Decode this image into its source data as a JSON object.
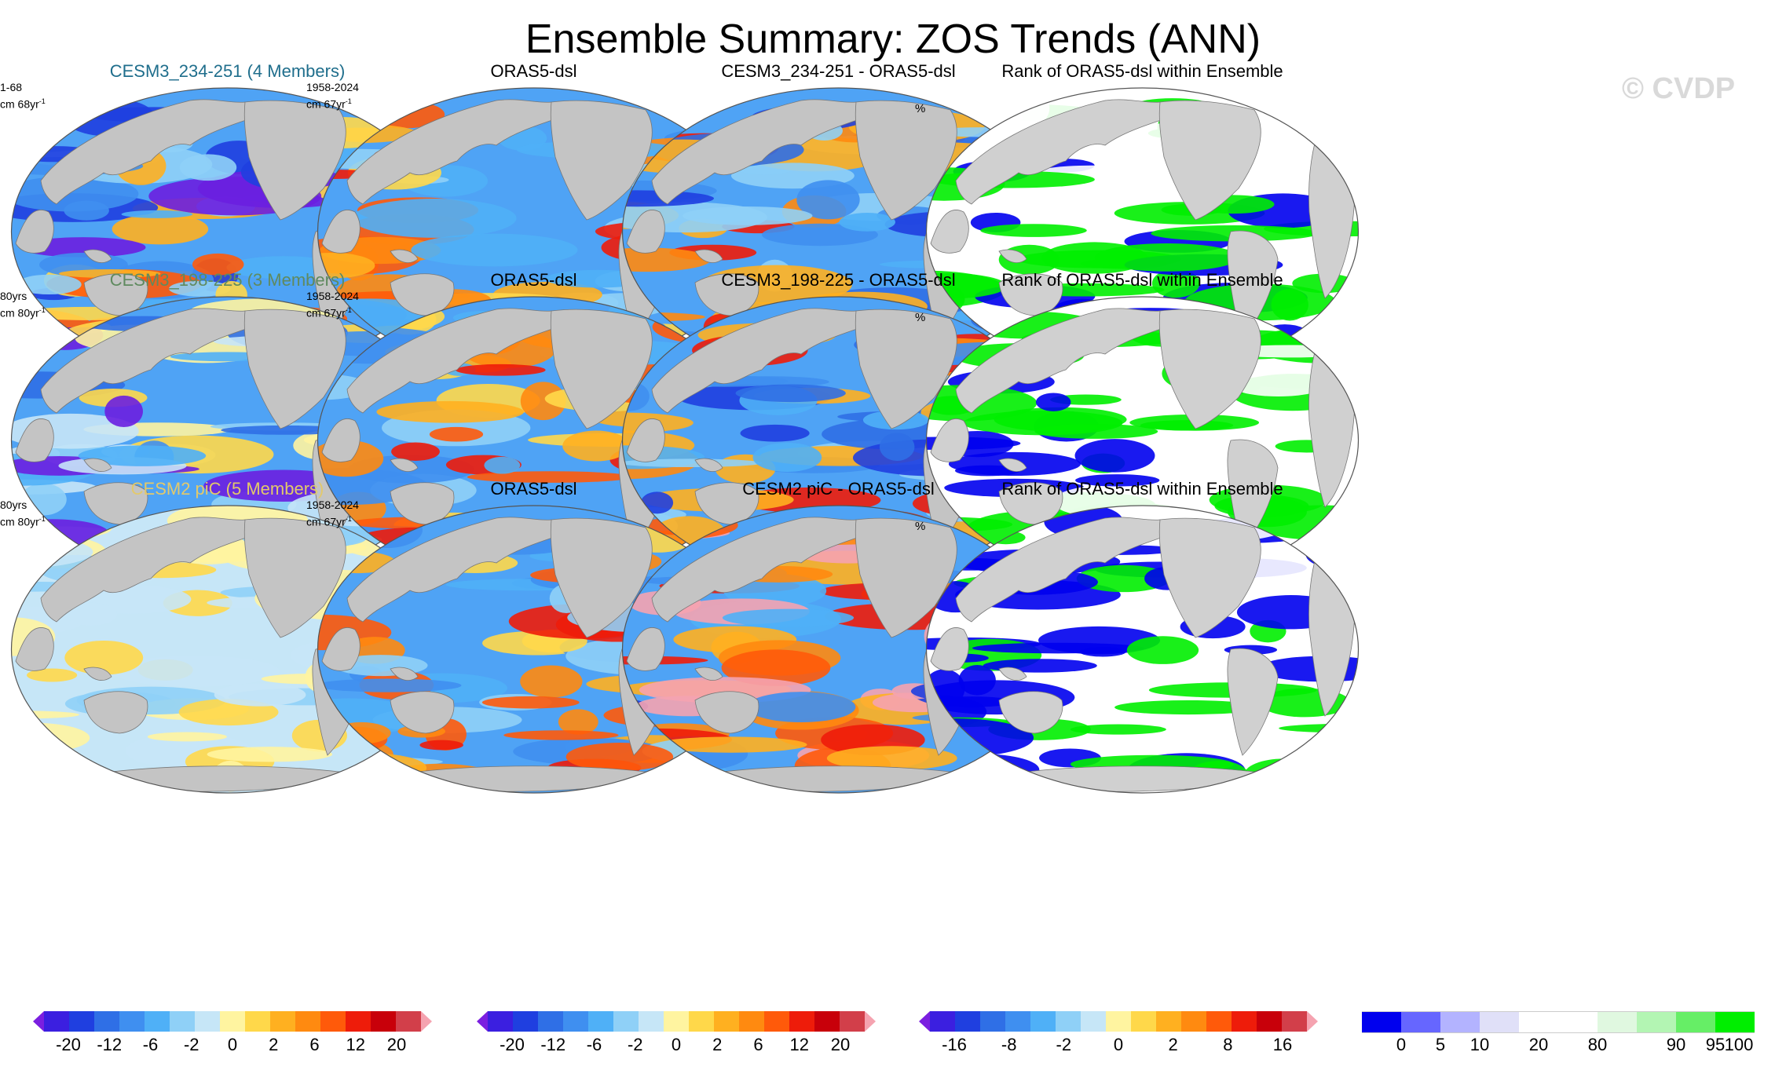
{
  "figure": {
    "title": "Ensemble Summary: ZOS Trends (ANN)",
    "watermark": "© CVDP"
  },
  "panels": [
    {
      "id": "r1c1",
      "title": "CESM3_234-251 (4 Members)",
      "title_color": "#1f6e8c",
      "info1": "1-68",
      "info2": "cm 68yr",
      "info2_sup": "-1",
      "style": "ens1"
    },
    {
      "id": "r1c2",
      "title": "ORAS5-dsl",
      "title_color": "#000000",
      "info1": "1958-2024",
      "info2": "cm 67yr",
      "info2_sup": "-1",
      "style": "obs"
    },
    {
      "id": "r1c3",
      "title": "CESM3_234-251 - ORAS5-dsl",
      "title_color": "#000000",
      "info1": "",
      "info2": "",
      "info2_sup": "",
      "style": "diff1"
    },
    {
      "id": "r1c4",
      "title": "Rank of ORAS5-dsl within Ensemble",
      "title_color": "#000000",
      "info1": "",
      "info2": "",
      "info2_sup": "",
      "pct": "%",
      "style": "rank1"
    },
    {
      "id": "r2c1",
      "title": "CESM3_198-225 (3 Members)",
      "title_color": "#5f8a5f",
      "info1": "80yrs",
      "info2": "cm 80yr",
      "info2_sup": "-1",
      "style": "ens2"
    },
    {
      "id": "r2c2",
      "title": "ORAS5-dsl",
      "title_color": "#000000",
      "info1": "1958-2024",
      "info2": "cm 67yr",
      "info2_sup": "-1",
      "style": "obs"
    },
    {
      "id": "r2c3",
      "title": "CESM3_198-225 - ORAS5-dsl",
      "title_color": "#000000",
      "info1": "",
      "info2": "",
      "info2_sup": "",
      "style": "diff2"
    },
    {
      "id": "r2c4",
      "title": "Rank of ORAS5-dsl within Ensemble",
      "title_color": "#000000",
      "info1": "",
      "info2": "",
      "info2_sup": "",
      "pct": "%",
      "style": "rank2"
    },
    {
      "id": "r3c1",
      "title": "CESM2 piC (5 Members)",
      "title_color": "#e3c96a",
      "info1": "80yrs",
      "info2": "cm 80yr",
      "info2_sup": "-1",
      "style": "ens3"
    },
    {
      "id": "r3c2",
      "title": "ORAS5-dsl",
      "title_color": "#000000",
      "info1": "1958-2024",
      "info2": "cm 67yr",
      "info2_sup": "-1",
      "style": "obs"
    },
    {
      "id": "r3c3",
      "title": "CESM2 piC - ORAS5-dsl",
      "title_color": "#000000",
      "info1": "",
      "info2": "",
      "info2_sup": "",
      "style": "diff3"
    },
    {
      "id": "r3c4",
      "title": "Rank of ORAS5-dsl within Ensemble",
      "title_color": "#000000",
      "info1": "",
      "info2": "",
      "info2_sup": "",
      "pct": "%",
      "style": "rank3"
    }
  ],
  "colorbars": [
    {
      "id": "cb1",
      "colors": [
        "#7b1fe0",
        "#3b1fe0",
        "#1f3fe0",
        "#2f6fe6",
        "#3f8ff0",
        "#4fb0f7",
        "#8fd0f7",
        "#c6e6f7",
        "#fff4a0",
        "#ffd84a",
        "#ffb020",
        "#ff8a10",
        "#ff5a0a",
        "#ee1c0a",
        "#c8000a",
        "#d23f4a",
        "#f5a3b0"
      ],
      "labels": [
        "-20",
        "-12",
        "-6",
        "-2",
        "0",
        "2",
        "6",
        "12",
        "20"
      ]
    },
    {
      "id": "cb2",
      "colors": [
        "#7b1fe0",
        "#3b1fe0",
        "#1f3fe0",
        "#2f6fe6",
        "#3f8ff0",
        "#4fb0f7",
        "#8fd0f7",
        "#c6e6f7",
        "#fff4a0",
        "#ffd84a",
        "#ffb020",
        "#ff8a10",
        "#ff5a0a",
        "#ee1c0a",
        "#c8000a",
        "#d23f4a",
        "#f5a3b0"
      ],
      "labels": [
        "-20",
        "-12",
        "-6",
        "-2",
        "0",
        "2",
        "6",
        "12",
        "20"
      ]
    },
    {
      "id": "cb3",
      "colors": [
        "#7b1fe0",
        "#3b1fe0",
        "#1f3fe0",
        "#2f6fe6",
        "#3f8ff0",
        "#4fb0f7",
        "#8fd0f7",
        "#c6e6f7",
        "#fff4a0",
        "#ffd84a",
        "#ffb020",
        "#ff8a10",
        "#ff5a0a",
        "#ee1c0a",
        "#c8000a",
        "#d23f4a",
        "#f5a3b0"
      ],
      "labels": [
        "-16",
        "-8",
        "-2",
        "0",
        "2",
        "8",
        "16"
      ]
    },
    {
      "id": "cb4",
      "colors": [
        "#0000ee",
        "#6666ff",
        "#b3b3ff",
        "#e0e0f8",
        "#ffffff",
        "#ffffff",
        "#e0f8e0",
        "#b3f5b3",
        "#66ee66",
        "#00ee00"
      ],
      "labels": [
        "0",
        "5",
        "10",
        "20",
        "80",
        "90",
        "95",
        "100"
      ]
    }
  ],
  "colors": {
    "land": "#c4c4c4",
    "ocean_blue": "#4fa3f5",
    "ocean_orange": "#ffb020",
    "ocean_red": "#ee1c0a",
    "ocean_purple": "#6a1fe0",
    "rank_green": "#00ee00",
    "rank_blue": "#0000ee"
  }
}
